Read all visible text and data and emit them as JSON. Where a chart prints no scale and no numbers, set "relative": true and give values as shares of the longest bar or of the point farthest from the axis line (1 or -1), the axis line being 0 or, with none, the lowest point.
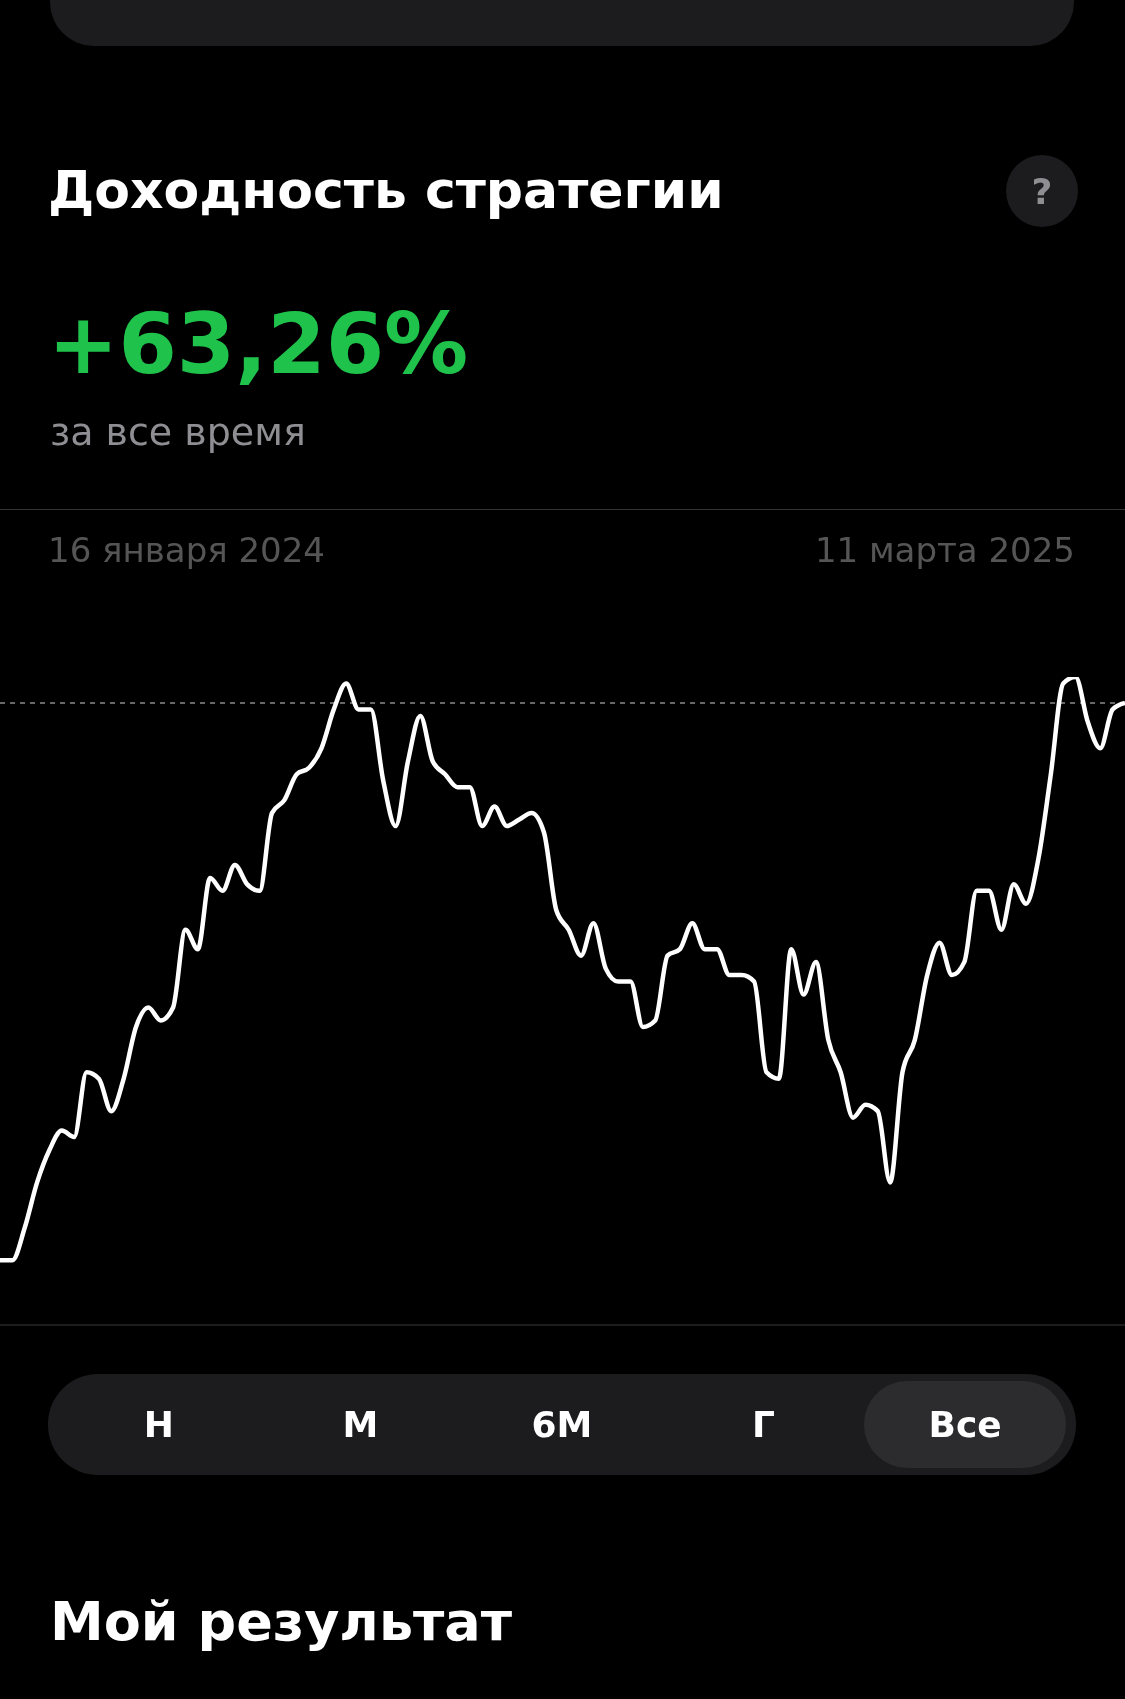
{
  "chart_data": {
    "type": "line",
    "relative": true,
    "title": "Доходность стратегии",
    "subtitle": "+63,26%",
    "annotations": [
      "за все время",
      "16 января 2024",
      "11 марта 2025",
      "?",
      "Н",
      "М",
      "6М",
      "Г",
      "Все",
      "Мой результат"
    ],
    "categories": [
      null,
      null,
      null,
      null,
      null,
      null,
      null,
      null,
      null,
      null,
      null,
      null,
      null,
      null,
      null,
      null,
      null,
      null,
      null,
      null,
      null,
      null,
      null,
      null,
      null,
      null,
      null,
      null,
      null,
      null,
      null,
      null,
      null,
      null,
      null,
      null,
      null,
      null,
      null,
      null,
      null,
      null,
      null,
      null,
      null,
      null,
      null,
      null,
      null,
      null,
      null,
      null,
      null,
      null,
      null,
      null,
      null,
      null,
      null,
      null,
      null,
      null,
      null,
      null,
      null,
      null,
      null,
      null,
      null,
      null,
      null,
      null,
      null,
      null,
      null,
      null,
      null,
      null,
      null,
      null,
      null,
      null,
      null,
      null,
      null,
      null,
      null,
      null,
      null,
      null,
      null,
      null
    ],
    "series": [
      {
        "color": "#ffffff",
        "values": [
          0.1,
          0.1,
          0.15,
          0.22,
          0.27,
          0.3,
          0.29,
          0.39,
          0.38,
          0.33,
          0.38,
          0.46,
          0.49,
          0.47,
          0.49,
          0.61,
          0.58,
          0.69,
          0.67,
          0.71,
          0.68,
          0.67,
          0.79,
          0.81,
          0.85,
          0.86,
          0.89,
          0.95,
          0.99,
          0.95,
          0.95,
          0.84,
          0.77,
          0.87,
          0.94,
          0.87,
          0.85,
          0.83,
          0.83,
          0.77,
          0.8,
          0.77,
          0.78,
          0.79,
          0.76,
          0.64,
          0.61,
          0.57,
          0.62,
          0.55,
          0.53,
          0.53,
          0.46,
          0.47,
          0.57,
          0.58,
          0.62,
          0.58,
          0.58,
          0.54,
          0.54,
          0.53,
          0.39,
          0.38,
          0.58,
          0.51,
          0.56,
          0.44,
          0.39,
          0.32,
          0.34,
          0.33,
          0.22,
          0.39,
          0.44,
          0.54,
          0.59,
          0.54,
          0.56,
          0.67,
          0.67,
          0.61,
          0.68,
          0.65,
          0.72,
          0.85,
          0.99,
          1,
          0.93,
          0.89,
          0.95,
          0.96
        ]
      }
    ],
    "ref_lines": [
      {
        "axis": "y",
        "value": 0.96,
        "color": "#8a8a8a",
        "line_style": "dashed"
      }
    ],
    "marker": "none"
  }
}
